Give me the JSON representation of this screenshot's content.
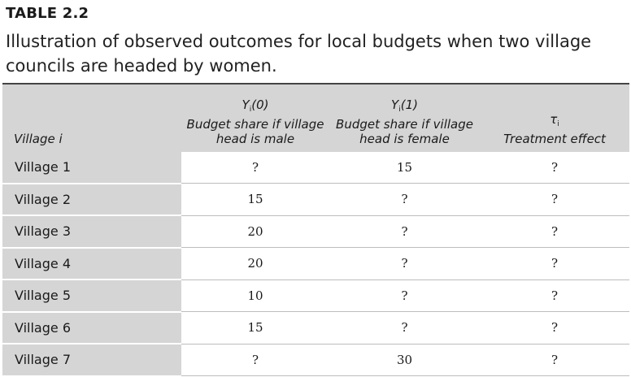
{
  "table_label": "TABLE 2.2",
  "caption": "Illustration of observed outcomes for local budgets when two village councils are headed by women.",
  "columns": [
    {
      "header": "Village i"
    },
    {
      "symbol": "Y",
      "subscript": "i",
      "arg": "(0)",
      "desc": "Budget share if village head is male"
    },
    {
      "symbol": "Y",
      "subscript": "i",
      "arg": "(1)",
      "desc": "Budget share if village head is female"
    },
    {
      "symbol": "τ",
      "subscript": "i",
      "arg": "",
      "desc": "Treatment effect"
    }
  ],
  "rows": [
    {
      "village": "Village 1",
      "y0": "?",
      "y1": "15",
      "effect": "?"
    },
    {
      "village": "Village 2",
      "y0": "15",
      "y1": "?",
      "effect": "?"
    },
    {
      "village": "Village 3",
      "y0": "20",
      "y1": "?",
      "effect": "?"
    },
    {
      "village": "Village 4",
      "y0": "20",
      "y1": "?",
      "effect": "?"
    },
    {
      "village": "Village 5",
      "y0": "10",
      "y1": "?",
      "effect": "?"
    },
    {
      "village": "Village 6",
      "y0": "15",
      "y1": "?",
      "effect": "?"
    },
    {
      "village": "Village 7",
      "y0": "?",
      "y1": "30",
      "effect": "?"
    }
  ]
}
